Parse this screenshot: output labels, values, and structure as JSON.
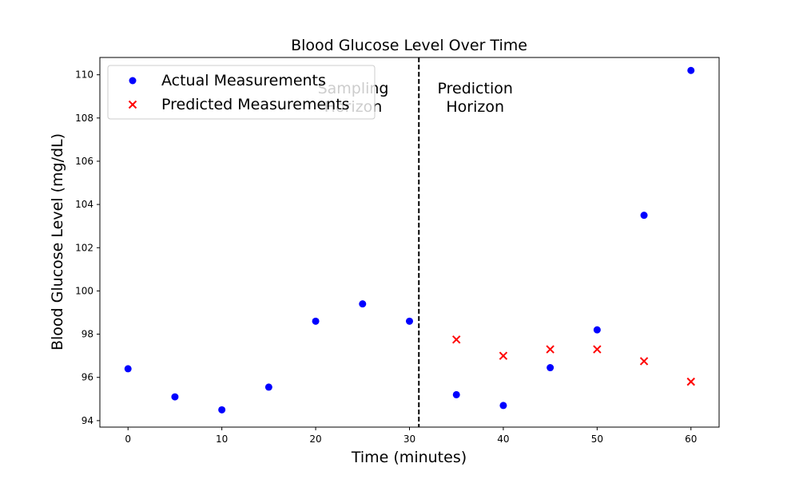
{
  "chart_data": {
    "type": "scatter",
    "title": "Blood Glucose Level Over Time",
    "xlabel": "Time (minutes)",
    "ylabel": "Blood Glucose Level (mg/dL)",
    "xlim": [
      -3,
      63
    ],
    "ylim": [
      93.7,
      110.8
    ],
    "xticks": [
      0,
      10,
      20,
      30,
      40,
      50,
      60
    ],
    "yticks": [
      94,
      96,
      98,
      100,
      102,
      104,
      106,
      108,
      110
    ],
    "grid": false,
    "legend_position": "top-left",
    "divider_x": 31,
    "region_labels": [
      {
        "lines": [
          "Sampling",
          "Horizon"
        ],
        "x": 24
      },
      {
        "lines": [
          "Prediction",
          "Horizon"
        ],
        "x": 37
      }
    ],
    "series": [
      {
        "name": "Actual Measurements",
        "marker": "circle",
        "color": "#0000ff",
        "x": [
          0,
          5,
          10,
          15,
          20,
          25,
          30,
          35,
          40,
          45,
          50,
          55,
          60
        ],
        "y": [
          96.4,
          95.1,
          94.5,
          95.55,
          98.6,
          99.4,
          98.6,
          95.2,
          94.7,
          96.45,
          98.2,
          103.5,
          110.2
        ]
      },
      {
        "name": "Predicted Measurements",
        "marker": "x",
        "color": "#ff0000",
        "x": [
          35,
          40,
          45,
          50,
          55,
          60
        ],
        "y": [
          97.75,
          97.0,
          97.3,
          97.3,
          96.75,
          95.8
        ]
      }
    ]
  }
}
